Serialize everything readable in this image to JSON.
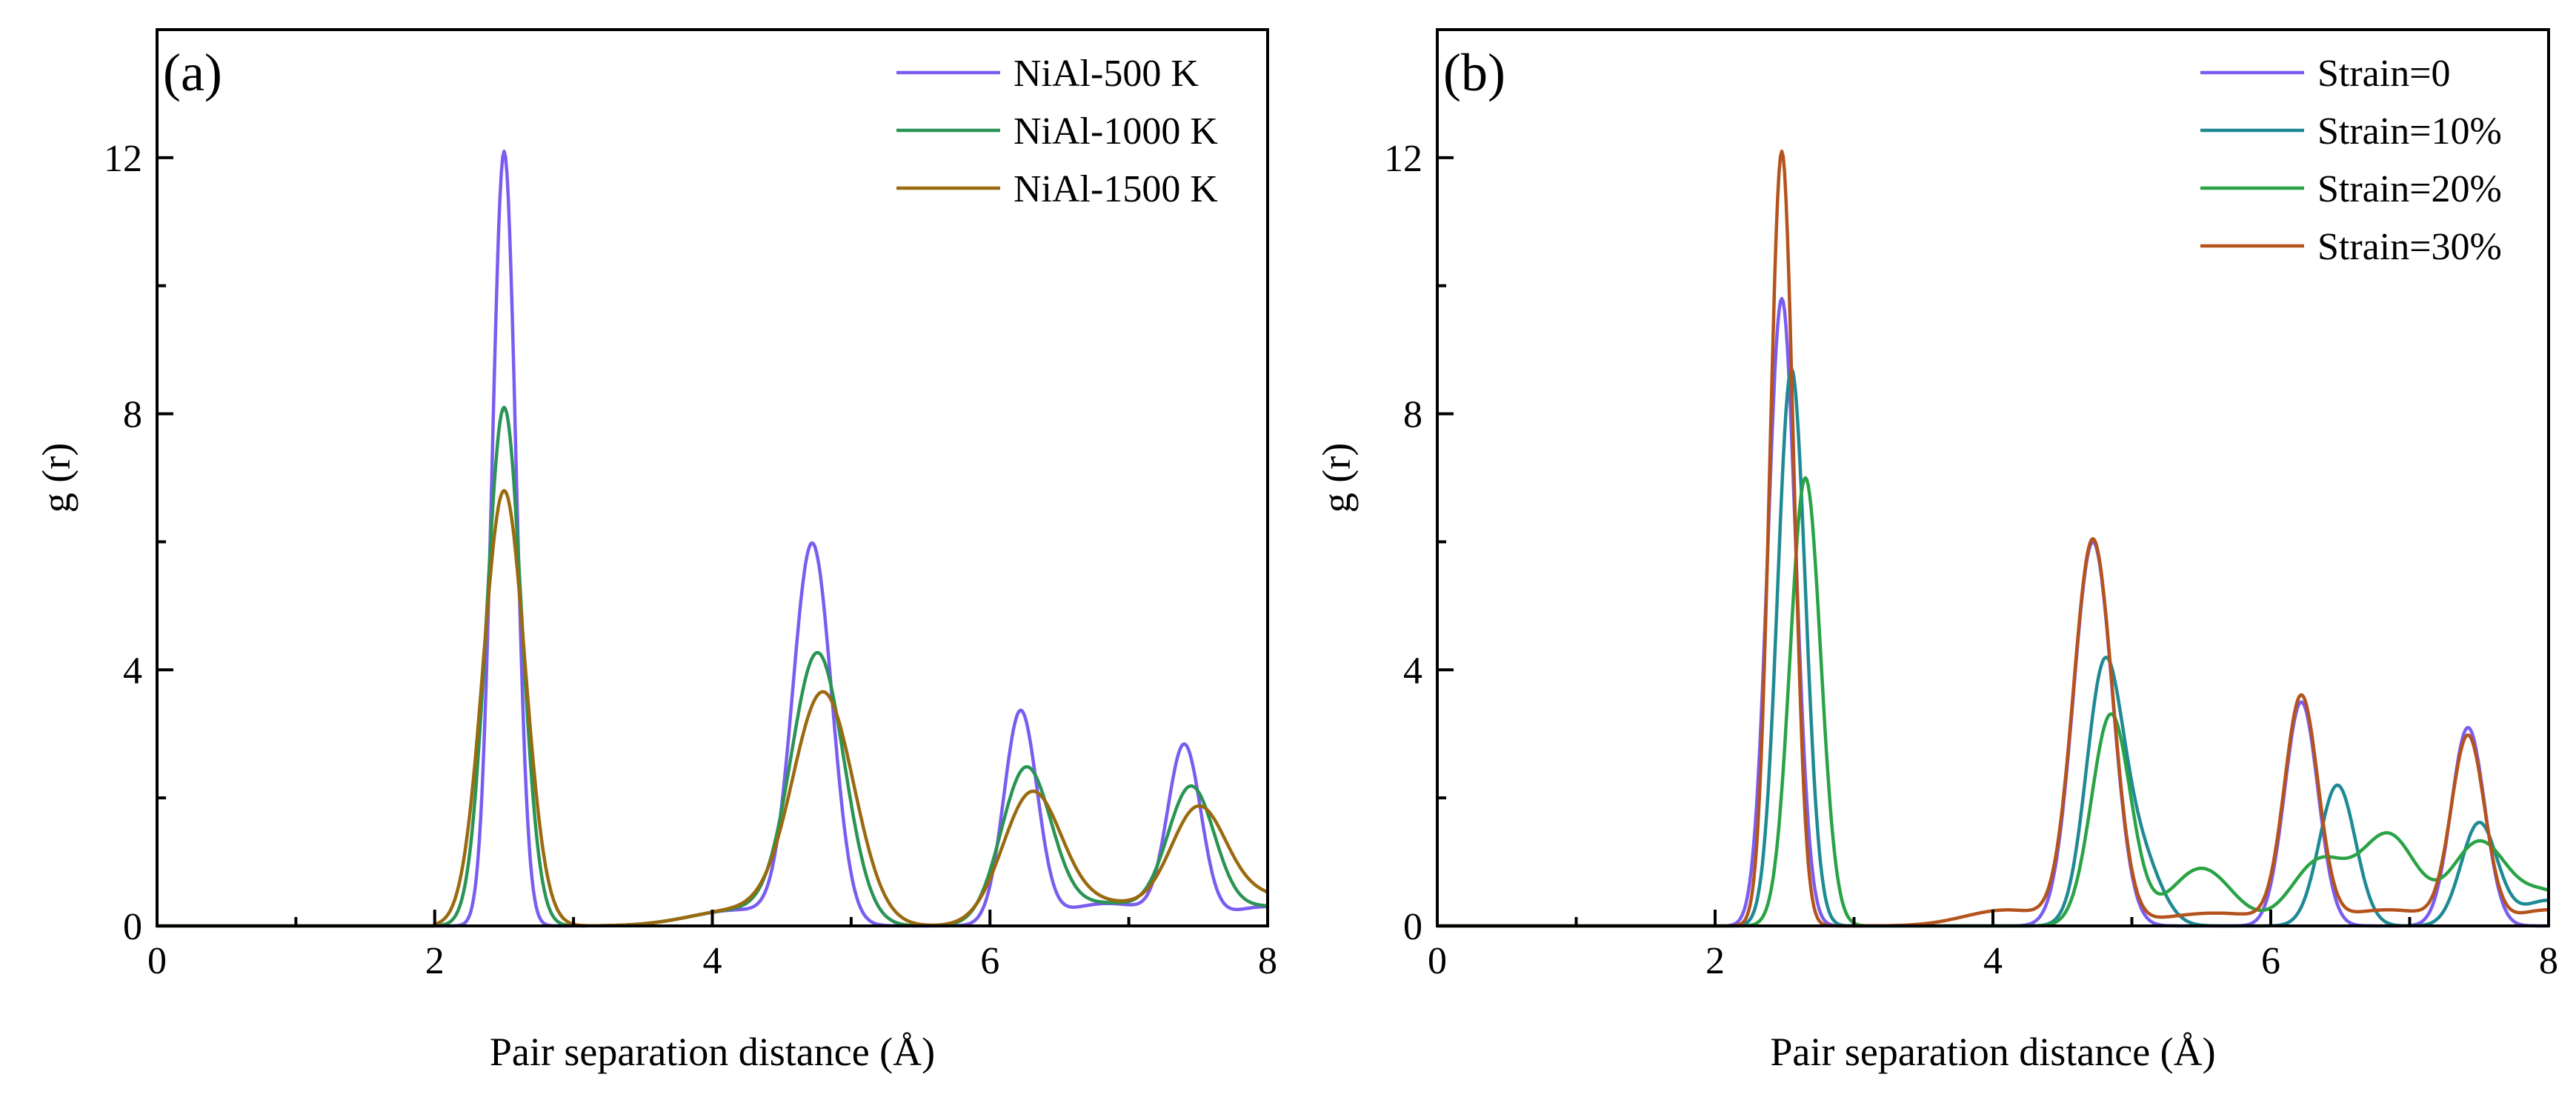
{
  "chart_data": [
    {
      "type": "line",
      "panel_tag": "(a)",
      "xlabel": "Pair separation distance (Å)",
      "ylabel": "g (r)",
      "xlim": [
        0,
        8
      ],
      "ylim": [
        0,
        14
      ],
      "xticks": [
        0,
        2,
        4,
        6,
        8
      ],
      "yticks": [
        0,
        4,
        8,
        12
      ],
      "xtick_labels": [
        "0",
        "2",
        "4",
        "6",
        "8"
      ],
      "ytick_labels": [
        "0",
        "4",
        "8",
        "12"
      ],
      "grid": false,
      "legend_position": "top-right",
      "series": [
        {
          "name": "NiAl-500 K",
          "color": "#7b5cf0",
          "peaks": [
            [
              2.5,
              12.1,
              0.085
            ],
            [
              4.72,
              5.9,
              0.14
            ],
            [
              6.22,
              3.3,
              0.12
            ],
            [
              7.4,
              2.7,
              0.12
            ],
            [
              4.2,
              0.25,
              0.35
            ],
            [
              6.85,
              0.35,
              0.35
            ],
            [
              8.0,
              0.3,
              0.3
            ]
          ],
          "values_at_peaks": {
            "x": [
              2.5,
              4.72,
              6.22,
              7.4
            ],
            "y": [
              12.1,
              6.2,
              3.7,
              3.1
            ]
          }
        },
        {
          "name": "NiAl-1000 K",
          "color": "#2a9455",
          "peaks": [
            [
              2.5,
              8.1,
              0.125
            ],
            [
              4.76,
              4.2,
              0.19
            ],
            [
              6.26,
              2.4,
              0.18
            ],
            [
              7.45,
              2.05,
              0.17
            ],
            [
              4.2,
              0.25,
              0.35
            ],
            [
              6.85,
              0.35,
              0.35
            ],
            [
              8.0,
              0.3,
              0.3
            ]
          ],
          "values_at_peaks": {
            "x": [
              2.5,
              4.76,
              6.26,
              7.45
            ],
            "y": [
              8.1,
              4.5,
              2.7,
              2.3
            ]
          }
        },
        {
          "name": "NiAl-1500 K",
          "color": "#9a6a10",
          "peaks": [
            [
              2.5,
              6.8,
              0.15
            ],
            [
              4.8,
              3.6,
              0.22
            ],
            [
              6.3,
              2.0,
              0.21
            ],
            [
              7.5,
              1.7,
              0.2
            ],
            [
              4.2,
              0.25,
              0.35
            ],
            [
              6.85,
              0.35,
              0.35
            ],
            [
              8.0,
              0.45,
              0.3
            ]
          ],
          "values_at_peaks": {
            "x": [
              2.5,
              4.8,
              6.3,
              7.5
            ],
            "y": [
              6.8,
              3.9,
              2.3,
              2.0
            ]
          }
        }
      ]
    },
    {
      "type": "line",
      "panel_tag": "(b)",
      "xlabel": "Pair separation distance (Å)",
      "ylabel": "g (r)",
      "xlim": [
        0,
        8
      ],
      "ylim": [
        0,
        14
      ],
      "xticks": [
        0,
        2,
        4,
        6,
        8
      ],
      "yticks": [
        0,
        4,
        8,
        12
      ],
      "xtick_labels": [
        "0",
        "2",
        "4",
        "6",
        "8"
      ],
      "ytick_labels": [
        "0",
        "4",
        "8",
        "12"
      ],
      "grid": false,
      "legend_position": "top-right",
      "series": [
        {
          "name": "Strain=0",
          "color": "#7b5cf0",
          "peaks": [
            [
              2.48,
              9.8,
              0.1
            ],
            [
              4.72,
              6.0,
              0.14
            ],
            [
              6.22,
              3.5,
              0.12
            ],
            [
              7.42,
              3.1,
              0.12
            ]
          ],
          "values_at_peaks": {
            "x": [
              2.48,
              4.72,
              6.22,
              7.42
            ],
            "y": [
              9.8,
              6.0,
              3.5,
              3.2
            ]
          }
        },
        {
          "name": "Strain=10%",
          "color": "#1f8a94",
          "peaks": [
            [
              2.55,
              8.7,
              0.1
            ],
            [
              4.8,
              3.9,
              0.13
            ],
            [
              5.05,
              1.1,
              0.15
            ],
            [
              6.48,
              2.2,
              0.13
            ],
            [
              7.5,
              1.6,
              0.13
            ],
            [
              8.0,
              0.4,
              0.2
            ]
          ],
          "values_at_peaks": {
            "x": [
              2.55,
              4.8,
              6.48,
              7.5
            ],
            "y": [
              8.7,
              4.0,
              2.2,
              1.8
            ]
          }
        },
        {
          "name": "Strain=20%",
          "color": "#2aa345",
          "peaks": [
            [
              2.65,
              7.0,
              0.11
            ],
            [
              4.85,
              3.3,
              0.14
            ],
            [
              5.5,
              0.9,
              0.22
            ],
            [
              6.35,
              1.0,
              0.2
            ],
            [
              6.85,
              1.4,
              0.2
            ],
            [
              7.5,
              1.3,
              0.2
            ],
            [
              8.0,
              0.5,
              0.2
            ]
          ],
          "values_at_peaks": {
            "x": [
              2.65,
              4.85,
              5.5,
              6.35,
              6.85,
              7.5
            ],
            "y": [
              7.0,
              3.4,
              0.9,
              1.0,
              1.4,
              1.35
            ]
          }
        },
        {
          "name": "Strain=30%",
          "color": "#b5531c",
          "peaks": [
            [
              2.48,
              12.1,
              0.085
            ],
            [
              4.72,
              6.0,
              0.14
            ],
            [
              6.22,
              3.5,
              0.12
            ],
            [
              7.42,
              2.9,
              0.12
            ],
            [
              4.1,
              0.25,
              0.3
            ],
            [
              5.6,
              0.2,
              0.4
            ],
            [
              6.85,
              0.25,
              0.35
            ],
            [
              8.0,
              0.25,
              0.25
            ]
          ],
          "values_at_peaks": {
            "x": [
              2.48,
              4.72,
              6.22,
              7.42
            ],
            "y": [
              12.1,
              6.2,
              3.7,
              3.1
            ]
          }
        }
      ]
    }
  ]
}
